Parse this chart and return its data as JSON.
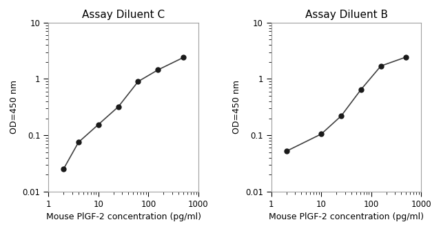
{
  "left_title": "Assay Diluent C",
  "right_title": "Assay Diluent B",
  "xlabel": "Mouse PlGF-2 concentration (pg/ml)",
  "ylabel": "OD=450 nm",
  "left_x": [
    2,
    4,
    10,
    25,
    62.5,
    156,
    500
  ],
  "left_y": [
    0.025,
    0.075,
    0.155,
    0.32,
    0.9,
    1.45,
    2.4
  ],
  "right_x": [
    2,
    10,
    25,
    62.5,
    156,
    500
  ],
  "right_y": [
    0.052,
    0.105,
    0.22,
    0.65,
    1.7,
    2.45
  ],
  "xlim": [
    1,
    1000
  ],
  "ylim": [
    0.01,
    10
  ],
  "line_color": "#404040",
  "marker_color": "#1a1a1a",
  "marker_size": 5,
  "line_width": 1.2,
  "bg_color": "#ffffff",
  "title_fontsize": 11,
  "label_fontsize": 9,
  "tick_fontsize": 8.5
}
